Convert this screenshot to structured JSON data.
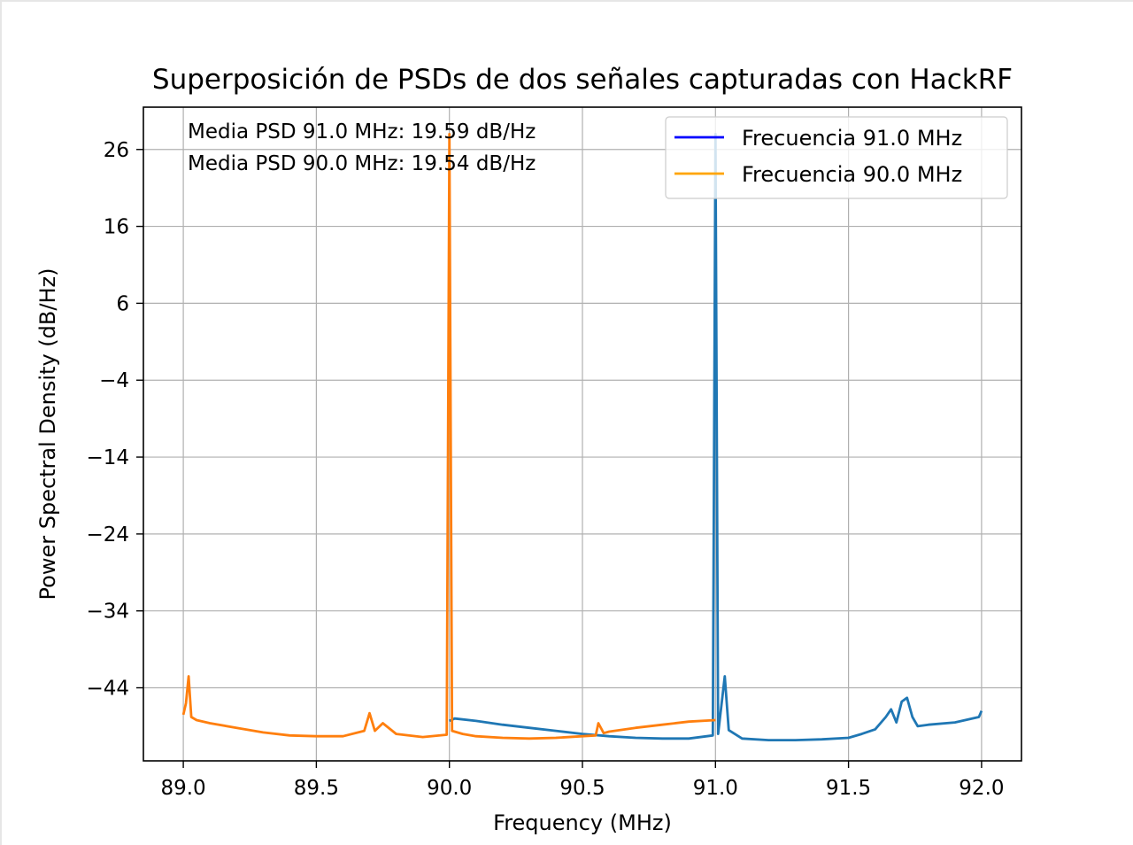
{
  "chart_data": {
    "type": "line",
    "title": "Superposición de PSDs de dos señales capturadas con HackRF",
    "xlabel": "Frequency (MHz)",
    "ylabel": "Power Spectral Density (dB/Hz)",
    "xlim": [
      88.85,
      92.15
    ],
    "ylim": [
      -53.5,
      31.5
    ],
    "xticks": [
      89.0,
      89.5,
      90.0,
      90.5,
      91.0,
      91.5,
      92.0
    ],
    "xtick_labels": [
      "89.0",
      "89.5",
      "90.0",
      "90.5",
      "91.0",
      "91.5",
      "92.0"
    ],
    "yticks": [
      26,
      16,
      6,
      -4,
      -14,
      -24,
      -34,
      -44
    ],
    "ytick_labels": [
      "26",
      "16",
      "6",
      "−4",
      "−14",
      "−24",
      "−34",
      "−44"
    ],
    "grid": true,
    "legend_position": "top-right",
    "legend": [
      {
        "label": "Frecuencia 91.0 MHz",
        "color": "#0000ff"
      },
      {
        "label": "Frecuencia 90.0 MHz",
        "color": "#ffa500"
      }
    ],
    "annotations": [
      "Media PSD 91.0 MHz: 19.59 dB/Hz",
      "Media PSD 90.0 MHz: 19.54 dB/Hz"
    ],
    "series": [
      {
        "color": "#1f77b4",
        "x": [
          90.0,
          90.02,
          90.1,
          90.2,
          90.3,
          90.4,
          90.5,
          90.6,
          90.7,
          90.8,
          90.9,
          90.99,
          91.0,
          91.01,
          91.02,
          91.035,
          91.05,
          91.1,
          91.2,
          91.3,
          91.4,
          91.5,
          91.55,
          91.6,
          91.64,
          91.66,
          91.68,
          91.7,
          91.72,
          91.74,
          91.76,
          91.8,
          91.9,
          91.99,
          92.0
        ],
        "y": [
          -48.3,
          -48.0,
          -48.3,
          -48.8,
          -49.2,
          -49.6,
          -50.0,
          -50.3,
          -50.5,
          -50.6,
          -50.6,
          -50.2,
          28.0,
          -50.0,
          -47.0,
          -42.5,
          -49.5,
          -50.6,
          -50.8,
          -50.8,
          -50.7,
          -50.5,
          -50.0,
          -49.4,
          -47.8,
          -46.8,
          -48.5,
          -45.8,
          -45.3,
          -47.8,
          -49.0,
          -48.8,
          -48.5,
          -47.8,
          -47.0
        ]
      },
      {
        "color": "#ff7f0e",
        "x": [
          89.0,
          89.01,
          89.02,
          89.03,
          89.05,
          89.1,
          89.2,
          89.3,
          89.4,
          89.5,
          89.6,
          89.68,
          89.7,
          89.72,
          89.75,
          89.8,
          89.9,
          89.99,
          90.0,
          90.01,
          90.05,
          90.1,
          90.2,
          90.3,
          90.4,
          90.5,
          90.55,
          90.56,
          90.58,
          90.6,
          90.7,
          90.8,
          90.9,
          91.0
        ],
        "y": [
          -47.5,
          -46.0,
          -42.5,
          -47.8,
          -48.2,
          -48.6,
          -49.2,
          -49.8,
          -50.2,
          -50.3,
          -50.3,
          -49.6,
          -47.3,
          -49.6,
          -48.6,
          -50.0,
          -50.4,
          -50.1,
          28.0,
          -49.6,
          -50.0,
          -50.3,
          -50.5,
          -50.6,
          -50.5,
          -50.3,
          -50.2,
          -48.6,
          -49.9,
          -49.7,
          -49.2,
          -48.8,
          -48.4,
          -48.2
        ]
      }
    ]
  }
}
